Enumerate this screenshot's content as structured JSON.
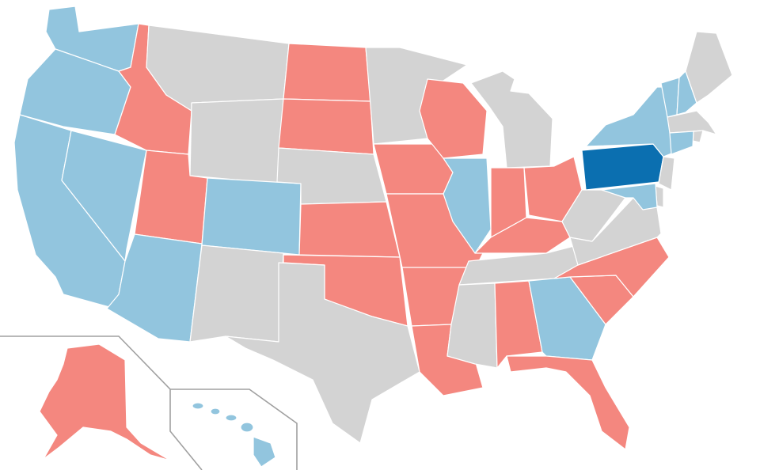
{
  "colors": {
    "blue_highlight": "#0b6fb0",
    "blue_light": "#92c5de",
    "red": "#f4877f",
    "gray": "#d3d3d3",
    "border": "#ffffff",
    "inset_frame": "#a0a0a0"
  },
  "legend": [],
  "states": {
    "WA": "blue_light",
    "OR": "blue_light",
    "CA": "blue_light",
    "NV": "blue_light",
    "ID": "red",
    "MT": "gray",
    "WY": "gray",
    "UT": "red",
    "AZ": "blue_light",
    "CO": "blue_light",
    "NM": "gray",
    "ND": "red",
    "SD": "red",
    "NE": "gray",
    "KS": "red",
    "OK": "red",
    "TX": "gray",
    "MN": "gray",
    "IA": "red",
    "MO": "red",
    "AR": "red",
    "LA": "red",
    "WI": "red",
    "IL": "blue_light",
    "MI": "gray",
    "IN": "red",
    "OH": "red",
    "KY": "red",
    "TN": "gray",
    "MS": "gray",
    "AL": "red",
    "GA": "blue_light",
    "FL": "red",
    "SC": "red",
    "NC": "red",
    "VA": "gray",
    "WV": "gray",
    "PA": "blue_highlight",
    "NY": "blue_light",
    "VT": "blue_light",
    "NH": "blue_light",
    "ME": "gray",
    "MA": "gray",
    "RI": "gray",
    "CT": "blue_light",
    "NJ": "gray",
    "DE": "gray",
    "MD": "blue_light",
    "AK": "red",
    "HI": "blue_light"
  }
}
